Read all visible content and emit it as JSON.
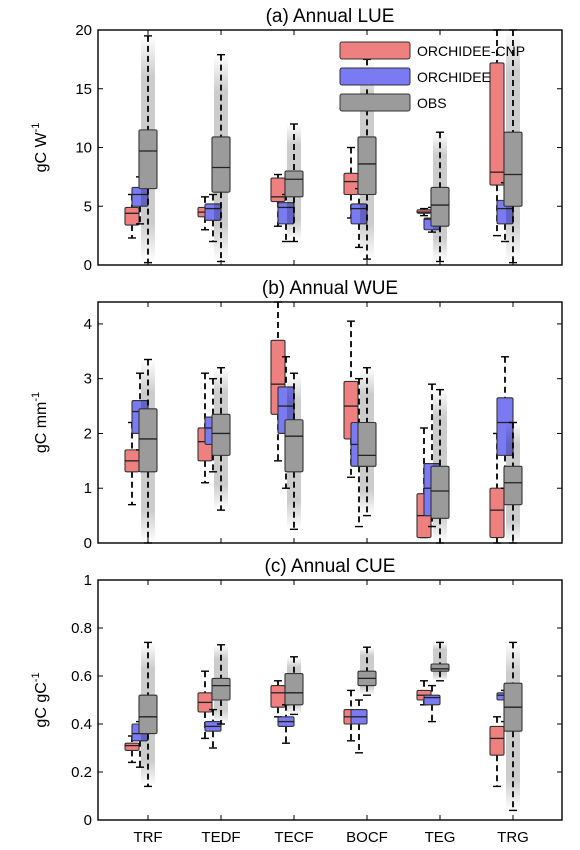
{
  "chart_data": [
    {
      "type": "box",
      "title": "(a) Annual LUE",
      "ylabel": "gC W-1",
      "ylabel_main": "gC W",
      "ylabel_sup": "-1",
      "ylim": [
        0,
        20
      ],
      "yticks": [
        "0",
        "5",
        "10",
        "15",
        "20"
      ],
      "categories": [
        "TRF",
        "TEDF",
        "TECF",
        "BOCF",
        "TEG",
        "TRG"
      ],
      "legend": {
        "position": "top-right",
        "entries": [
          "ORCHIDEE-CNP",
          "ORCHIDEE",
          "OBS"
        ]
      },
      "series": [
        {
          "name": "ORCHIDEE-CNP",
          "boxes": [
            {
              "whislo": 2.3,
              "q1": 3.4,
              "med": 4.4,
              "q3": 4.9,
              "whishi": 6.0
            },
            {
              "whislo": 3.0,
              "q1": 4.1,
              "med": 4.5,
              "q3": 4.9,
              "whishi": 5.8
            },
            {
              "whislo": 3.3,
              "q1": 5.4,
              "med": 5.8,
              "q3": 7.4,
              "whishi": 7.7
            },
            {
              "whislo": 4.0,
              "q1": 6.0,
              "med": 7.1,
              "q3": 7.8,
              "whishi": 10.0
            },
            {
              "whislo": 4.2,
              "q1": 4.4,
              "med": 4.5,
              "q3": 4.7,
              "whishi": 4.8
            },
            {
              "whislo": 2.5,
              "q1": 6.8,
              "med": 7.9,
              "q3": 17.2,
              "whishi": 20.0
            }
          ]
        },
        {
          "name": "ORCHIDEE",
          "boxes": [
            {
              "whislo": 3.5,
              "q1": 5.0,
              "med": 6.0,
              "q3": 6.6,
              "whishi": 7.5
            },
            {
              "whislo": 2.0,
              "q1": 3.8,
              "med": 4.8,
              "q3": 5.2,
              "whishi": 6.0
            },
            {
              "whislo": 2.0,
              "q1": 3.5,
              "med": 4.9,
              "q3": 5.3,
              "whishi": 6.0
            },
            {
              "whislo": 1.5,
              "q1": 3.5,
              "med": 4.8,
              "q3": 5.2,
              "whishi": 6.5
            },
            {
              "whislo": 2.8,
              "q1": 3.0,
              "med": 3.9,
              "q3": 4.0,
              "whishi": 4.9
            },
            {
              "whislo": 2.0,
              "q1": 3.5,
              "med": 4.8,
              "q3": 5.5,
              "whishi": 7.0
            }
          ]
        },
        {
          "name": "OBS",
          "boxes": [
            {
              "whislo": 0.2,
              "q1": 6.5,
              "med": 9.7,
              "q3": 11.5,
              "whishi": 19.5
            },
            {
              "whislo": 0.3,
              "q1": 6.2,
              "med": 8.3,
              "q3": 10.9,
              "whishi": 17.9
            },
            {
              "whislo": 2.0,
              "q1": 5.8,
              "med": 7.3,
              "q3": 8.0,
              "whishi": 12.0
            },
            {
              "whislo": 0.5,
              "q1": 6.0,
              "med": 8.6,
              "q3": 10.9,
              "whishi": 17.5
            },
            {
              "whislo": 0.3,
              "q1": 3.3,
              "med": 5.1,
              "q3": 6.6,
              "whishi": 11.3
            },
            {
              "whislo": 0.2,
              "q1": 5.0,
              "med": 7.7,
              "q3": 11.3,
              "whishi": 20.0
            }
          ]
        }
      ]
    },
    {
      "type": "box",
      "title": "(b) Annual WUE",
      "ylabel": "gC mm-1",
      "ylabel_main": "gC mm",
      "ylabel_sup": "-1",
      "ylim": [
        0,
        4.4
      ],
      "yticks": [
        "0",
        "1",
        "2",
        "3",
        "4"
      ],
      "categories": [
        "TRF",
        "TEDF",
        "TECF",
        "BOCF",
        "TEG",
        "TRG"
      ],
      "series": [
        {
          "name": "ORCHIDEE-CNP",
          "boxes": [
            {
              "whislo": 0.7,
              "q1": 1.3,
              "med": 1.5,
              "q3": 1.7,
              "whishi": 2.2
            },
            {
              "whislo": 1.1,
              "q1": 1.5,
              "med": 1.85,
              "q3": 2.1,
              "whishi": 3.1
            },
            {
              "whislo": 1.5,
              "q1": 2.35,
              "med": 2.9,
              "q3": 3.7,
              "whishi": 4.4
            },
            {
              "whislo": 1.2,
              "q1": 1.9,
              "med": 2.5,
              "q3": 2.95,
              "whishi": 4.05
            },
            {
              "whislo": 0.1,
              "q1": 0.1,
              "med": 0.5,
              "q3": 0.9,
              "whishi": 2.1
            },
            {
              "whislo": 0.0,
              "q1": 0.1,
              "med": 0.6,
              "q3": 1.0,
              "whishi": 2.0
            }
          ]
        },
        {
          "name": "ORCHIDEE",
          "boxes": [
            {
              "whislo": 1.7,
              "q1": 2.0,
              "med": 2.4,
              "q3": 2.6,
              "whishi": 3.1
            },
            {
              "whislo": 1.3,
              "q1": 1.8,
              "med": 2.1,
              "q3": 2.3,
              "whishi": 3.0
            },
            {
              "whislo": 1.0,
              "q1": 2.0,
              "med": 2.5,
              "q3": 2.85,
              "whishi": 3.4
            },
            {
              "whislo": 0.3,
              "q1": 1.4,
              "med": 1.8,
              "q3": 2.2,
              "whishi": 3.0
            },
            {
              "whislo": 0.3,
              "q1": 0.5,
              "med": 1.0,
              "q3": 1.45,
              "whishi": 2.9
            },
            {
              "whislo": 1.0,
              "q1": 1.6,
              "med": 2.2,
              "q3": 2.65,
              "whishi": 3.4
            }
          ]
        },
        {
          "name": "OBS",
          "boxes": [
            {
              "whislo": 0.0,
              "q1": 1.3,
              "med": 1.9,
              "q3": 2.45,
              "whishi": 3.35
            },
            {
              "whislo": 0.6,
              "q1": 1.6,
              "med": 2.0,
              "q3": 2.35,
              "whishi": 3.2
            },
            {
              "whislo": 0.25,
              "q1": 1.3,
              "med": 1.95,
              "q3": 2.25,
              "whishi": 3.1
            },
            {
              "whislo": 0.5,
              "q1": 1.4,
              "med": 1.6,
              "q3": 2.2,
              "whishi": 3.2
            },
            {
              "whislo": 0.0,
              "q1": 0.45,
              "med": 0.95,
              "q3": 1.4,
              "whishi": 2.8
            },
            {
              "whislo": 0.0,
              "q1": 0.7,
              "med": 1.1,
              "q3": 1.4,
              "whishi": 2.2
            }
          ]
        }
      ]
    },
    {
      "type": "box",
      "title": "(c) Annual CUE",
      "ylabel": "gC gC-1",
      "ylabel_main": "gC gC",
      "ylabel_sup": "-1",
      "ylim": [
        0,
        1
      ],
      "yticks": [
        "0",
        "0.2",
        "0.4",
        "0.6",
        "0.8",
        "1"
      ],
      "categories": [
        "TRF",
        "TEDF",
        "TECF",
        "BOCF",
        "TEG",
        "TRG"
      ],
      "series": [
        {
          "name": "ORCHIDEE-CNP",
          "boxes": [
            {
              "whislo": 0.24,
              "q1": 0.29,
              "med": 0.31,
              "q3": 0.32,
              "whishi": 0.35
            },
            {
              "whislo": 0.34,
              "q1": 0.45,
              "med": 0.49,
              "q3": 0.53,
              "whishi": 0.62
            },
            {
              "whislo": 0.43,
              "q1": 0.47,
              "med": 0.53,
              "q3": 0.56,
              "whishi": 0.58
            },
            {
              "whislo": 0.33,
              "q1": 0.4,
              "med": 0.43,
              "q3": 0.46,
              "whishi": 0.54
            },
            {
              "whislo": 0.48,
              "q1": 0.5,
              "med": 0.52,
              "q3": 0.54,
              "whishi": 0.58
            },
            {
              "whislo": 0.14,
              "q1": 0.27,
              "med": 0.34,
              "q3": 0.39,
              "whishi": 0.43
            }
          ]
        },
        {
          "name": "ORCHIDEE",
          "boxes": [
            {
              "whislo": 0.22,
              "q1": 0.33,
              "med": 0.36,
              "q3": 0.4,
              "whishi": 0.41
            },
            {
              "whislo": 0.3,
              "q1": 0.37,
              "med": 0.39,
              "q3": 0.41,
              "whishi": 0.46
            },
            {
              "whislo": 0.32,
              "q1": 0.39,
              "med": 0.41,
              "q3": 0.43,
              "whishi": 0.48
            },
            {
              "whislo": 0.28,
              "q1": 0.4,
              "med": 0.43,
              "q3": 0.46,
              "whishi": 0.5
            },
            {
              "whislo": 0.41,
              "q1": 0.48,
              "med": 0.51,
              "q3": 0.52,
              "whishi": 0.56
            },
            {
              "whislo": 0.41,
              "q1": 0.5,
              "med": 0.52,
              "q3": 0.53,
              "whishi": 0.54
            }
          ]
        },
        {
          "name": "OBS",
          "boxes": [
            {
              "whislo": 0.14,
              "q1": 0.36,
              "med": 0.43,
              "q3": 0.52,
              "whishi": 0.74
            },
            {
              "whislo": 0.4,
              "q1": 0.5,
              "med": 0.56,
              "q3": 0.59,
              "whishi": 0.73
            },
            {
              "whislo": 0.44,
              "q1": 0.48,
              "med": 0.53,
              "q3": 0.61,
              "whishi": 0.68
            },
            {
              "whislo": 0.52,
              "q1": 0.56,
              "med": 0.59,
              "q3": 0.62,
              "whishi": 0.72
            },
            {
              "whislo": 0.58,
              "q1": 0.62,
              "med": 0.63,
              "q3": 0.65,
              "whishi": 0.74
            },
            {
              "whislo": 0.04,
              "q1": 0.37,
              "med": 0.47,
              "q3": 0.57,
              "whishi": 0.74
            }
          ]
        }
      ]
    }
  ],
  "colors": {
    "ORCHIDEE-CNP": "#ee8080",
    "ORCHIDEE": "#7a7af2",
    "OBS": "#9b9b9b",
    "whisker": "#000000"
  }
}
